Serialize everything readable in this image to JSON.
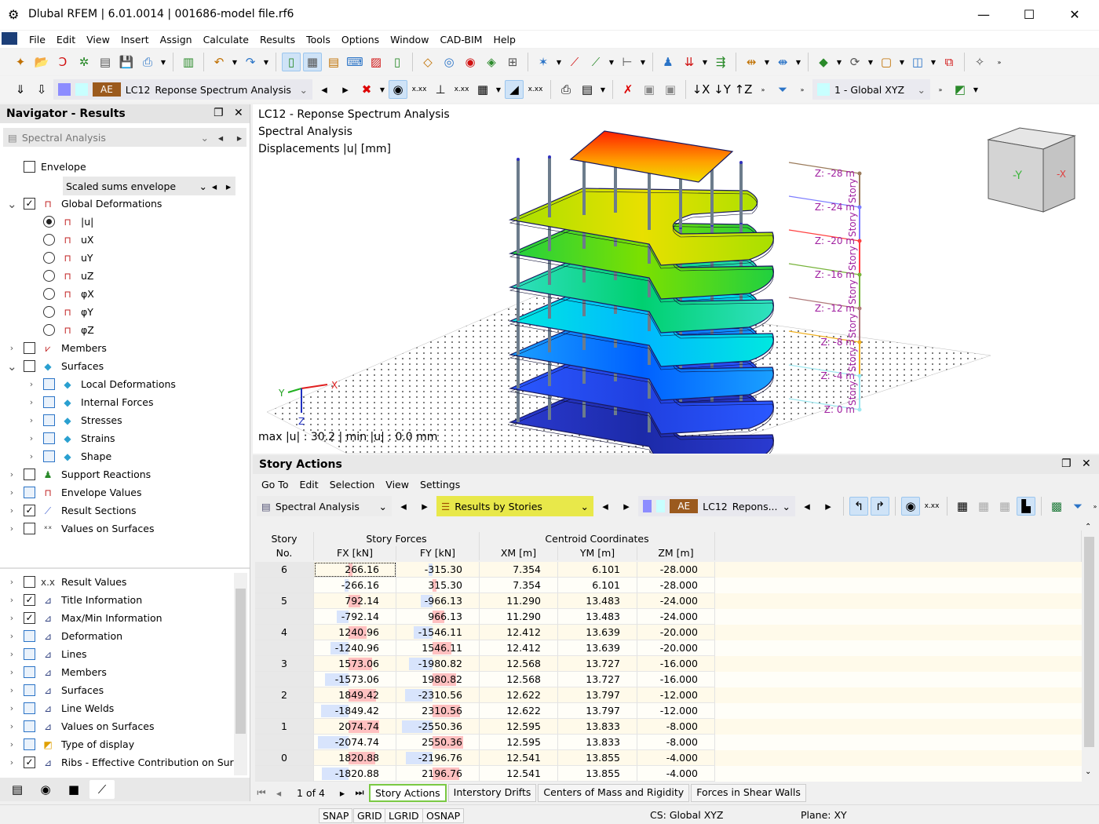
{
  "window": {
    "title": "Dlubal RFEM | 6.01.0014 | 001686-model file.rf6"
  },
  "menu": [
    "File",
    "Edit",
    "View",
    "Insert",
    "Assign",
    "Calculate",
    "Results",
    "Tools",
    "Options",
    "Window",
    "CAD-BIM",
    "Help"
  ],
  "toolbar1": {
    "icons": [
      "new-model-icon",
      "open-icon",
      "dlubal-center-icon",
      "webservice-icon",
      "print-preview-icon",
      "save-icon",
      "print-icon",
      "|",
      "report-icon",
      "|",
      "undo-icon",
      "redo-icon",
      "|",
      "view-model-icon",
      "table-view-icon",
      "navigator-view-icon",
      "console-icon",
      "script-icon",
      "data-icon",
      "|",
      "section-icon",
      "pick-node-icon",
      "target-icon",
      "comment-icon",
      "add-text-icon",
      "|",
      "node-star-icon",
      "line-icon",
      "line-multi-icon",
      "member-icon",
      "|",
      "support-icon",
      "load-icon",
      "load-wizard-icon",
      "|",
      "dimension-x-icon",
      "dimension-xx-icon",
      "|",
      "guide-object-icon",
      "rotate-icon",
      "box-icon",
      "cube-icon",
      "copy-view-icon",
      "|",
      "disabled-icon"
    ]
  },
  "toolbar2": {
    "lc_badge": "AE",
    "lc_id": "LC12",
    "lc_name": "Reponse Spectrum Analysis",
    "coord_system": "1 - Global XYZ",
    "swatch_colors": [
      "#8c8cff",
      "#c8ffff"
    ],
    "lc_color": "#9b5a1e"
  },
  "navigator": {
    "title": "Navigator - Results",
    "analysis": "Spectral Analysis",
    "envelope_option": "Scaled sums envelope",
    "tree": [
      {
        "label": "Envelope",
        "level": 0,
        "exp": null,
        "check": "off",
        "icon": null
      },
      {
        "label": "Global Deformations",
        "level": 0,
        "exp": "open",
        "check": "on",
        "icon": "deformation-icon"
      },
      {
        "label": "|u|",
        "level": 1,
        "exp": null,
        "check": "radio-on",
        "icon": "deformation-icon"
      },
      {
        "label": "uX",
        "level": 1,
        "exp": null,
        "check": "radio-off",
        "icon": "deformation-icon"
      },
      {
        "label": "uY",
        "level": 1,
        "exp": null,
        "check": "radio-off",
        "icon": "deformation-icon"
      },
      {
        "label": "uZ",
        "level": 1,
        "exp": null,
        "check": "radio-off",
        "icon": "deformation-icon"
      },
      {
        "label": "φX",
        "level": 1,
        "exp": null,
        "check": "radio-off",
        "icon": "deformation-icon"
      },
      {
        "label": "φY",
        "level": 1,
        "exp": null,
        "check": "radio-off",
        "icon": "deformation-icon"
      },
      {
        "label": "φZ",
        "level": 1,
        "exp": null,
        "check": "radio-off",
        "icon": "deformation-icon"
      },
      {
        "label": "Members",
        "level": 0,
        "exp": "closed",
        "check": "off",
        "icon": "members-icon"
      },
      {
        "label": "Surfaces",
        "level": 0,
        "exp": "open",
        "check": "off",
        "icon": "surface-icon"
      },
      {
        "label": "Local Deformations",
        "level": 1,
        "exp": "closed",
        "check": "off-blue",
        "icon": "surface-icon"
      },
      {
        "label": "Internal Forces",
        "level": 1,
        "exp": "closed",
        "check": "off-blue",
        "icon": "surface-icon"
      },
      {
        "label": "Stresses",
        "level": 1,
        "exp": "closed",
        "check": "off-blue",
        "icon": "surface-icon"
      },
      {
        "label": "Strains",
        "level": 1,
        "exp": "closed",
        "check": "off-blue",
        "icon": "surface-icon"
      },
      {
        "label": "Shape",
        "level": 1,
        "exp": "closed",
        "check": "off-blue",
        "icon": "surface-icon"
      },
      {
        "label": "Support Reactions",
        "level": 0,
        "exp": "closed",
        "check": "off",
        "icon": "support-icon"
      },
      {
        "label": "Envelope Values",
        "level": 0,
        "exp": "closed",
        "check": "off-blue",
        "icon": "deformation-icon"
      },
      {
        "label": "Result Sections",
        "level": 0,
        "exp": "closed",
        "check": "on",
        "icon": "section-icon"
      },
      {
        "label": "Values on Surfaces",
        "level": 0,
        "exp": "closed",
        "check": "off",
        "icon": "values-icon"
      }
    ],
    "tree2": [
      {
        "label": "Result Values",
        "check": "off",
        "icon": "result-values-icon"
      },
      {
        "label": "Title Information",
        "check": "on",
        "icon": "display-icon"
      },
      {
        "label": "Max/Min Information",
        "check": "on",
        "icon": "display-icon"
      },
      {
        "label": "Deformation",
        "check": "off-blue",
        "icon": "display-icon"
      },
      {
        "label": "Lines",
        "check": "off-blue",
        "icon": "display-icon"
      },
      {
        "label": "Members",
        "check": "off-blue",
        "icon": "display-icon"
      },
      {
        "label": "Surfaces",
        "check": "off-blue",
        "icon": "display-icon"
      },
      {
        "label": "Line Welds",
        "check": "off-blue",
        "icon": "display-icon"
      },
      {
        "label": "Values on Surfaces",
        "check": "off-blue",
        "icon": "display-icon"
      },
      {
        "label": "Type of display",
        "check": "off-blue",
        "icon": "rainbow-icon"
      },
      {
        "label": "Ribs - Effective Contribution on Surf...",
        "check": "on",
        "icon": "display-icon"
      }
    ],
    "bottom_tabs": [
      "data-icon",
      "eye-icon",
      "camera-icon",
      "results-icon"
    ]
  },
  "view": {
    "info": [
      "LC12 - Reponse Spectrum Analysis",
      "Spectral Analysis",
      "Displacements |u| [mm]"
    ],
    "maxmin": "max |u| : 30.2 | min |u| : 0.0 mm",
    "axes": {
      "x": "X",
      "y": "Y",
      "z": "Z"
    },
    "story_levels": [
      {
        "label": "Z: -28 m",
        "story": "Story",
        "color": "#9a7a5a"
      },
      {
        "label": "Z: -24 m",
        "story": "Story",
        "color": "#7d7dff"
      },
      {
        "label": "Z: -20 m",
        "story": "Story",
        "color": "#ff4040"
      },
      {
        "label": "Z: -16 m",
        "story": "Story",
        "color": "#77b33a"
      },
      {
        "label": "Z: -12 m",
        "story": "Story",
        "color": "#b07a7a"
      },
      {
        "label": "Z: -8 m",
        "story": "Story",
        "color": "#f0b020"
      },
      {
        "label": "Z: -4 m",
        "story": "Story",
        "color": "#9ee8f0"
      },
      {
        "label": "Z: 0 m",
        "story": "",
        "color": "#9ee8f0"
      }
    ],
    "legend_colors": [
      "#ff2000",
      "#ffb000",
      "#e8e800",
      "#8ce000",
      "#00d060",
      "#00e0e0",
      "#00a0ff",
      "#0040ff",
      "#2020b0"
    ]
  },
  "panel": {
    "title": "Story Actions",
    "menu": [
      "Go To",
      "Edit",
      "Selection",
      "View",
      "Settings"
    ],
    "analysis": "Spectral Analysis",
    "result_type": "Results by Stories",
    "lc_badge": "AE",
    "lc_id": "LC12",
    "lc_name": "Repons...",
    "headers": {
      "story": [
        "Story",
        "No."
      ],
      "group1": "Story Forces",
      "group2": "Centroid Coordinates",
      "cols": [
        "FX [kN]",
        "FY [kN]",
        "XM [m]",
        "YM [m]",
        "ZM [m]"
      ]
    },
    "rows": [
      [
        "6",
        "266.16",
        "-315.30",
        "7.354",
        "6.101",
        "-28.000"
      ],
      [
        "",
        "-266.16",
        "315.30",
        "7.354",
        "6.101",
        "-28.000"
      ],
      [
        "5",
        "792.14",
        "-966.13",
        "11.290",
        "13.483",
        "-24.000"
      ],
      [
        "",
        "-792.14",
        "966.13",
        "11.290",
        "13.483",
        "-24.000"
      ],
      [
        "4",
        "1240.96",
        "-1546.11",
        "12.412",
        "13.639",
        "-20.000"
      ],
      [
        "",
        "-1240.96",
        "1546.11",
        "12.412",
        "13.639",
        "-20.000"
      ],
      [
        "3",
        "1573.06",
        "-1980.82",
        "12.568",
        "13.727",
        "-16.000"
      ],
      [
        "",
        "-1573.06",
        "1980.82",
        "12.568",
        "13.727",
        "-16.000"
      ],
      [
        "2",
        "1849.42",
        "-2310.56",
        "12.622",
        "13.797",
        "-12.000"
      ],
      [
        "",
        "-1849.42",
        "2310.56",
        "12.622",
        "13.797",
        "-12.000"
      ],
      [
        "1",
        "2074.74",
        "-2550.36",
        "12.595",
        "13.833",
        "-8.000"
      ],
      [
        "",
        "-2074.74",
        "2550.36",
        "12.595",
        "13.833",
        "-8.000"
      ],
      [
        "0",
        "1820.88",
        "-2196.76",
        "12.541",
        "13.855",
        "-4.000"
      ],
      [
        "",
        "-1820.88",
        "2196.76",
        "12.541",
        "13.855",
        "-4.000"
      ]
    ],
    "bar_colors": {
      "positive": "#ffc0c0",
      "negative": "#d8e4fc"
    },
    "pagination": "1 of 4",
    "tabs": [
      "Story Actions",
      "Interstory Drifts",
      "Centers of Mass and Rigidity",
      "Forces in Shear Walls"
    ]
  },
  "status": {
    "toggles": [
      "SNAP",
      "GRID",
      "LGRID",
      "OSNAP"
    ],
    "cs": "CS: Global XYZ",
    "plane": "Plane: XY"
  }
}
